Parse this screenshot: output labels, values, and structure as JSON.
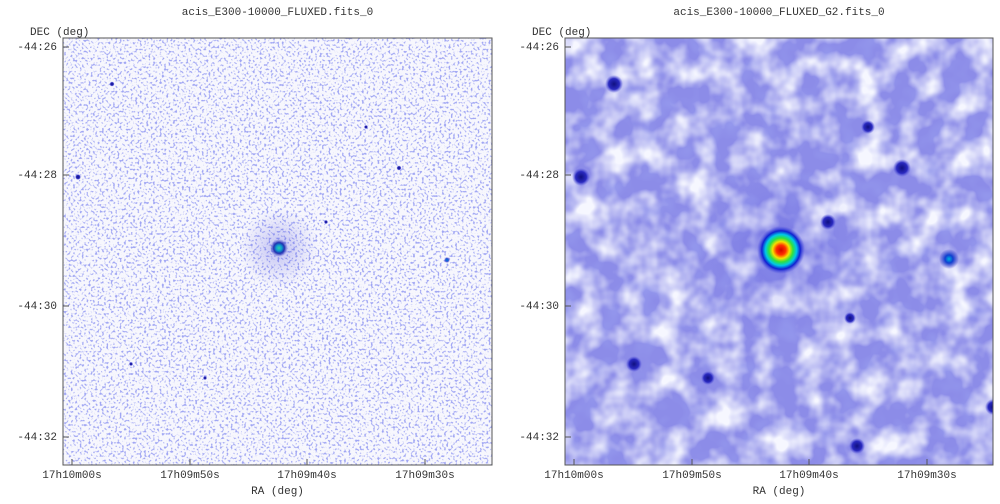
{
  "panels": [
    {
      "title": "acis_E300-10000_FLUXED.fits_0",
      "y_axis_label": "DEC (deg)",
      "x_axis_label": "RA (deg)",
      "y_ticks": [
        "-44:26",
        "-44:28",
        "-44:30",
        "-44:32"
      ],
      "x_ticks": [
        "17h10m00s",
        "17h09m50s",
        "17h09m40s",
        "17h09m30s"
      ]
    },
    {
      "title": "acis_E300-10000_FLUXED_G2.fits_0",
      "y_axis_label": "DEC (deg)",
      "x_axis_label": "RA (deg)",
      "y_ticks": [
        "-44:26",
        "-44:28",
        "-44:30",
        "-44:32"
      ],
      "x_ticks": [
        "17h10m00s",
        "17h09m50s",
        "17h09m40s",
        "17h09m30s"
      ]
    }
  ]
}
